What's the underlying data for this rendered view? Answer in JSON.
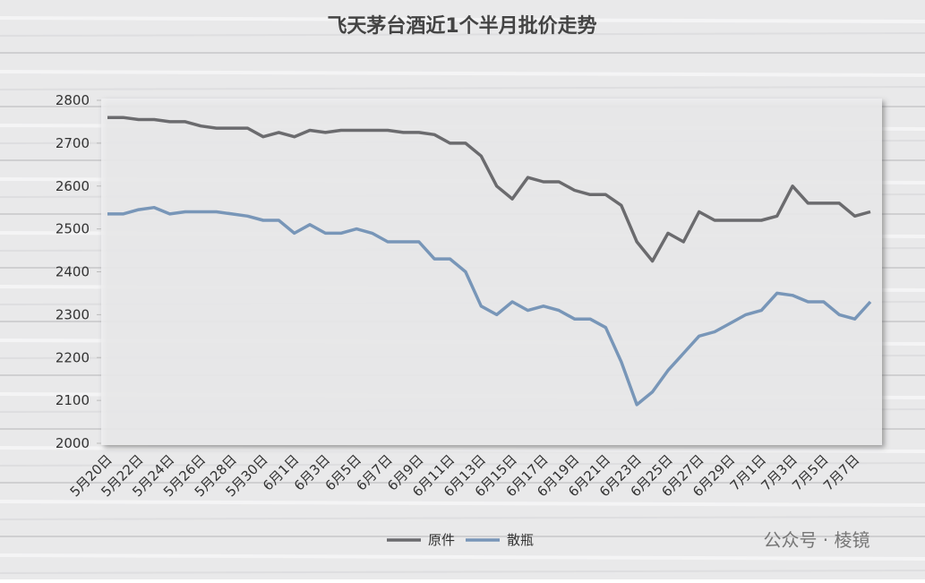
{
  "chart_data": {
    "type": "line",
    "title": "飞天茅台酒近1个半月批价走势",
    "categories": [
      "5月20日",
      null,
      "5月22日",
      null,
      "5月24日",
      null,
      "5月26日",
      null,
      "5月28日",
      null,
      "5月30日",
      null,
      "6月1日",
      null,
      "6月3日",
      null,
      "6月5日",
      null,
      "6月7日",
      null,
      "6月9日",
      null,
      "6月11日",
      null,
      "6月13日",
      null,
      "6月15日",
      null,
      "6月17日",
      null,
      "6月19日",
      null,
      "6月21日",
      null,
      "6月23日",
      null,
      "6月25日",
      null,
      "6月27日",
      null,
      "6月29日",
      null,
      "7月1日",
      null,
      "7月3日",
      null,
      "7月5日",
      null,
      "7月7日",
      null
    ],
    "series": [
      {
        "name": "原件",
        "color": "#6b6b6e",
        "values": [
          2760,
          2760,
          2755,
          2755,
          2750,
          2750,
          2740,
          2735,
          2735,
          2735,
          2715,
          2725,
          2715,
          2730,
          2725,
          2730,
          2730,
          2730,
          2730,
          2725,
          2725,
          2720,
          2700,
          2700,
          2670,
          2600,
          2570,
          2620,
          2610,
          2610,
          2590,
          2580,
          2580,
          2555,
          2470,
          2425,
          2490,
          2470,
          2540,
          2520,
          2520,
          2520,
          2520,
          2530,
          2600,
          2560,
          2560,
          2560,
          2530,
          2540
        ]
      },
      {
        "name": "散瓶",
        "color": "#7896b8",
        "values": [
          2535,
          2535,
          2545,
          2550,
          2535,
          2540,
          2540,
          2540,
          2535,
          2530,
          2520,
          2520,
          2490,
          2510,
          2490,
          2490,
          2500,
          2490,
          2470,
          2470,
          2470,
          2430,
          2430,
          2400,
          2320,
          2300,
          2330,
          2310,
          2320,
          2310,
          2290,
          2290,
          2270,
          2190,
          2090,
          2120,
          2170,
          2210,
          2250,
          2260,
          2280,
          2300,
          2310,
          2350,
          2345,
          2330,
          2330,
          2300,
          2290,
          2330
        ]
      }
    ],
    "ylim": [
      2000,
      2800
    ],
    "yticks": [
      2000,
      2100,
      2200,
      2300,
      2400,
      2500,
      2600,
      2700,
      2800
    ],
    "legend": "bottom",
    "watermark": "公众号 · 棱镜"
  }
}
